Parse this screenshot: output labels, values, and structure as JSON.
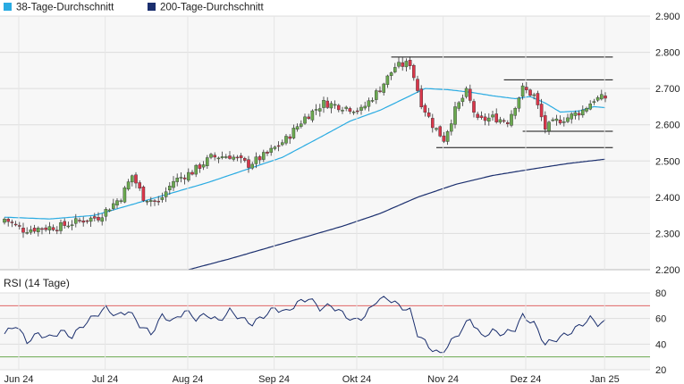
{
  "chart_data": [
    {
      "type": "candlestick",
      "title": "",
      "legend": [
        {
          "name": "38-Tage-Durchschnitt",
          "color": "#29abe2"
        },
        {
          "name": "200-Tage-Durchschnitt",
          "color": "#1b2f6e"
        }
      ],
      "legend_placement": "top-left",
      "x_ticks": [
        "Jun 24",
        "Jul 24",
        "Aug 24",
        "Sep 24",
        "Okt 24",
        "Nov 24",
        "Dez 24",
        "Jan 25"
      ],
      "y_ticks": [
        "2.900",
        "2.800",
        "2.700",
        "2.600",
        "2.500",
        "2.400",
        "2.300",
        "2.200"
      ],
      "ylim": [
        2200,
        2900
      ],
      "grid": true,
      "colors": {
        "up": "#6aa84f",
        "down": "#d9364a",
        "sma38": "#29abe2",
        "sma200": "#1b2f6e"
      },
      "close_anchors": [
        [
          0,
          2340
        ],
        [
          5,
          2310
        ],
        [
          10,
          2315
        ],
        [
          15,
          2320
        ],
        [
          20,
          2335
        ],
        [
          25,
          2345
        ],
        [
          31,
          2400
        ],
        [
          34,
          2460
        ],
        [
          37,
          2400
        ],
        [
          41,
          2385
        ],
        [
          45,
          2445
        ],
        [
          50,
          2470
        ],
        [
          55,
          2510
        ],
        [
          60,
          2515
        ],
        [
          65,
          2490
        ],
        [
          70,
          2520
        ],
        [
          75,
          2560
        ],
        [
          80,
          2620
        ],
        [
          85,
          2660
        ],
        [
          90,
          2650
        ],
        [
          95,
          2640
        ],
        [
          100,
          2700
        ],
        [
          104,
          2760
        ],
        [
          108,
          2770
        ],
        [
          111,
          2660
        ],
        [
          114,
          2600
        ],
        [
          117,
          2560
        ],
        [
          120,
          2640
        ],
        [
          123,
          2690
        ],
        [
          126,
          2610
        ],
        [
          130,
          2620
        ],
        [
          134,
          2610
        ],
        [
          138,
          2700
        ],
        [
          141,
          2680
        ],
        [
          144,
          2590
        ],
        [
          147,
          2610
        ],
        [
          150,
          2620
        ],
        [
          154,
          2640
        ],
        [
          157,
          2670
        ],
        [
          160,
          2675
        ]
      ],
      "sma38": [
        [
          0,
          2345
        ],
        [
          12,
          2340
        ],
        [
          24,
          2350
        ],
        [
          34,
          2380
        ],
        [
          44,
          2410
        ],
        [
          54,
          2440
        ],
        [
          64,
          2475
        ],
        [
          74,
          2510
        ],
        [
          84,
          2565
        ],
        [
          92,
          2610
        ],
        [
          100,
          2640
        ],
        [
          108,
          2680
        ],
        [
          112,
          2700
        ],
        [
          118,
          2697
        ],
        [
          124,
          2690
        ],
        [
          130,
          2680
        ],
        [
          136,
          2672
        ],
        [
          140,
          2678
        ],
        [
          144,
          2660
        ],
        [
          148,
          2635
        ],
        [
          153,
          2638
        ],
        [
          157,
          2650
        ],
        [
          160,
          2647
        ]
      ],
      "sma200": [
        [
          49,
          2200
        ],
        [
          60,
          2230
        ],
        [
          75,
          2275
        ],
        [
          90,
          2320
        ],
        [
          100,
          2355
        ],
        [
          110,
          2400
        ],
        [
          120,
          2435
        ],
        [
          130,
          2460
        ],
        [
          140,
          2477
        ],
        [
          150,
          2493
        ],
        [
          160,
          2505
        ]
      ],
      "resistance_lines": [
        {
          "y": 2787,
          "x_from": 103,
          "x_to": 162
        },
        {
          "y": 2724,
          "x_from": 133,
          "x_to": 162
        },
        {
          "y": 2582,
          "x_from": 138,
          "x_to": 162
        },
        {
          "y": 2537,
          "x_from": 115,
          "x_to": 162
        }
      ]
    },
    {
      "type": "line",
      "title": "RSI (14 Tage)",
      "y_ticks": [
        "80",
        "60",
        "40",
        "20"
      ],
      "ylim": [
        20,
        80
      ],
      "reference_lines": [
        {
          "y": 70,
          "color": "#e06666"
        },
        {
          "y": 30,
          "color": "#6aa84f"
        }
      ],
      "grid": true,
      "color": "#1b2f6e",
      "values_anchors": [
        [
          0,
          48
        ],
        [
          3,
          55
        ],
        [
          6,
          42
        ],
        [
          9,
          48
        ],
        [
          12,
          45
        ],
        [
          15,
          50
        ],
        [
          18,
          46
        ],
        [
          21,
          55
        ],
        [
          24,
          62
        ],
        [
          27,
          68
        ],
        [
          30,
          62
        ],
        [
          33,
          66
        ],
        [
          36,
          55
        ],
        [
          39,
          48
        ],
        [
          42,
          62
        ],
        [
          45,
          58
        ],
        [
          48,
          66
        ],
        [
          51,
          60
        ],
        [
          54,
          63
        ],
        [
          57,
          58
        ],
        [
          60,
          66
        ],
        [
          63,
          60
        ],
        [
          66,
          56
        ],
        [
          69,
          62
        ],
        [
          72,
          68
        ],
        [
          75,
          65
        ],
        [
          78,
          72
        ],
        [
          81,
          76
        ],
        [
          84,
          68
        ],
        [
          87,
          70
        ],
        [
          90,
          64
        ],
        [
          93,
          58
        ],
        [
          96,
          62
        ],
        [
          99,
          74
        ],
        [
          102,
          76
        ],
        [
          105,
          70
        ],
        [
          108,
          66
        ],
        [
          110,
          48
        ],
        [
          113,
          38
        ],
        [
          116,
          32
        ],
        [
          119,
          42
        ],
        [
          122,
          52
        ],
        [
          124,
          60
        ],
        [
          127,
          46
        ],
        [
          130,
          50
        ],
        [
          133,
          48
        ],
        [
          136,
          52
        ],
        [
          138,
          62
        ],
        [
          141,
          56
        ],
        [
          144,
          40
        ],
        [
          147,
          44
        ],
        [
          150,
          48
        ],
        [
          153,
          54
        ],
        [
          156,
          60
        ],
        [
          158,
          56
        ],
        [
          160,
          57
        ]
      ]
    }
  ]
}
